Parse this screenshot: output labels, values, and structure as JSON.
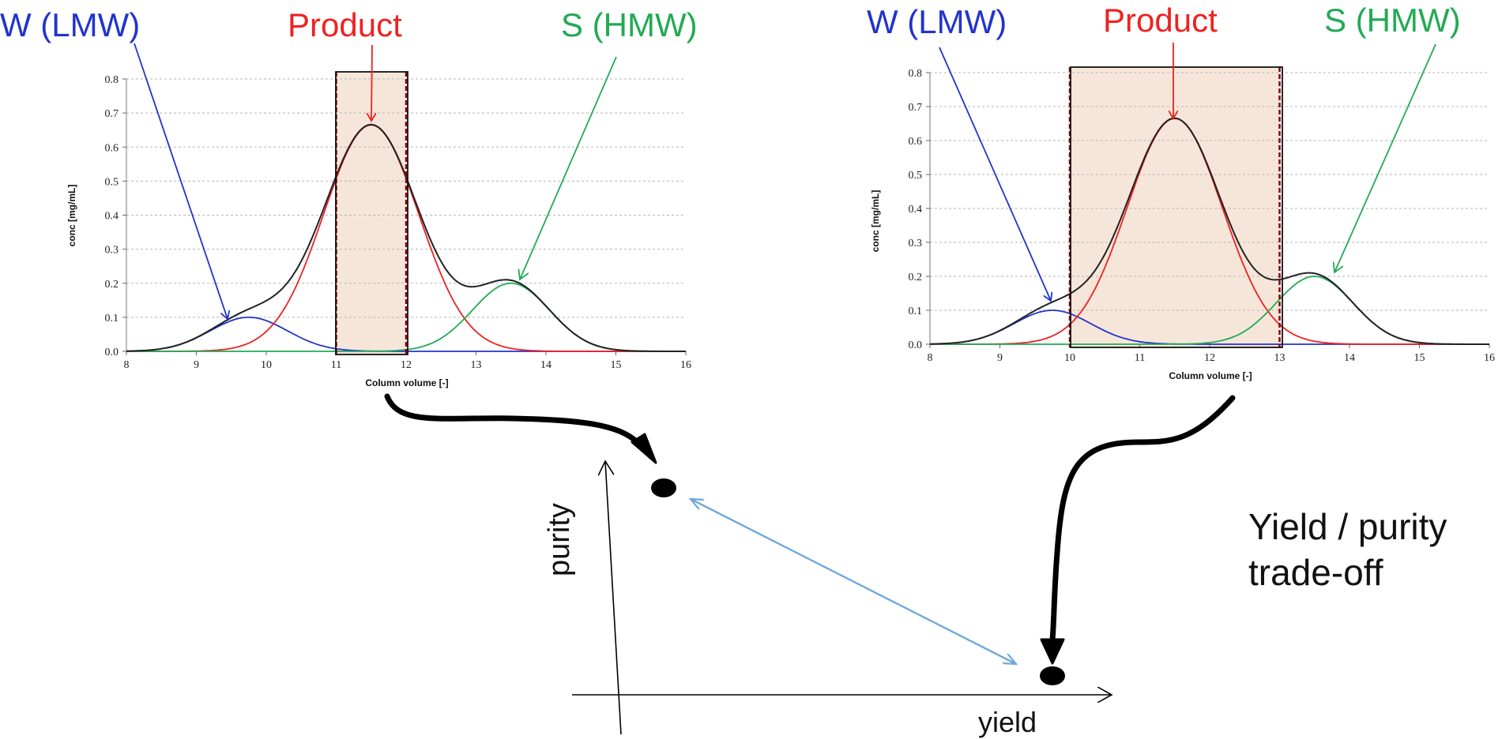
{
  "colors": {
    "impurity_lmw": "#2233cc",
    "product": "#ee2222",
    "impurity_hmw": "#22aa55",
    "total": "#222222",
    "cut_window_fill": "#f6e6da",
    "tradeoff_arrow": "#6fa8dc",
    "flow_arrow": "#000000"
  },
  "labels": {
    "lmw": "W (LMW)",
    "product": "Product",
    "hmw": "S (HMW)"
  },
  "tradeoff": {
    "x_axis_label": "yield",
    "y_axis_label": "purity",
    "note_line1": "Yield / purity",
    "note_line2": "trade-off"
  },
  "chart_data": [
    {
      "type": "line",
      "xlabel": "Column volume [-]",
      "ylabel": "conc [mg/mL]",
      "xlim": [
        8,
        16
      ],
      "ylim": [
        0,
        0.8
      ],
      "xticks": [
        8,
        9,
        10,
        11,
        12,
        13,
        14,
        15,
        16
      ],
      "yticks": [
        0.0,
        0.1,
        0.2,
        0.3,
        0.4,
        0.5,
        0.6,
        0.7,
        0.8
      ],
      "cut_window": [
        11,
        12
      ],
      "grid": "horizontal dashed",
      "peaks": [
        {
          "name": "W (LMW)",
          "center": 9.75,
          "height": 0.1,
          "sigma": 0.55
        },
        {
          "name": "Product",
          "center": 11.5,
          "height": 0.665,
          "sigma": 0.68
        },
        {
          "name": "S (HMW)",
          "center": 13.5,
          "height": 0.2,
          "sigma": 0.55
        }
      ]
    },
    {
      "type": "line",
      "xlabel": "Column volume [-]",
      "ylabel": "conc [mg/mL]",
      "xlim": [
        8,
        16
      ],
      "ylim": [
        0,
        0.8
      ],
      "xticks": [
        8,
        9,
        10,
        11,
        12,
        13,
        14,
        15,
        16
      ],
      "yticks": [
        0.0,
        0.1,
        0.2,
        0.3,
        0.4,
        0.5,
        0.6,
        0.7,
        0.8
      ],
      "cut_window": [
        10,
        13
      ],
      "grid": "horizontal dashed",
      "peaks": [
        {
          "name": "W (LMW)",
          "center": 9.75,
          "height": 0.1,
          "sigma": 0.55
        },
        {
          "name": "Product",
          "center": 11.5,
          "height": 0.665,
          "sigma": 0.68
        },
        {
          "name": "S (HMW)",
          "center": 13.5,
          "height": 0.2,
          "sigma": 0.55
        }
      ]
    }
  ]
}
